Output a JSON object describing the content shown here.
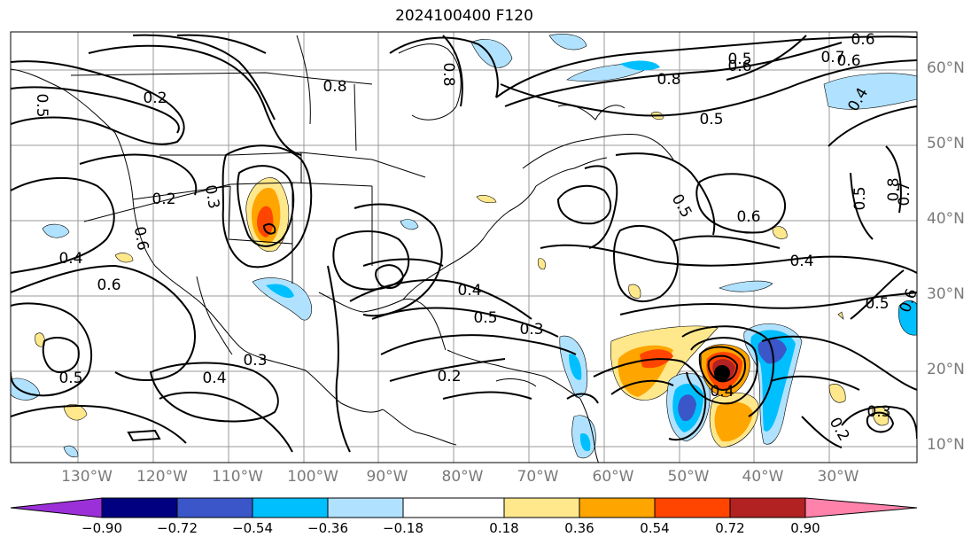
{
  "title": "2024100400 F120",
  "lat_labels": [
    "60°N",
    "50°N",
    "40°N",
    "30°N",
    "20°N",
    "10°N"
  ],
  "lon_labels": [
    "130°W",
    "120°W",
    "110°W",
    "100°W",
    "90°W",
    "80°W",
    "70°W",
    "60°W",
    "50°W",
    "40°W",
    "30°W"
  ],
  "colorbar": {
    "labels": [
      "−0.90",
      "−0.72",
      "−0.54",
      "−0.36",
      "−0.18",
      "0.18",
      "0.36",
      "0.54",
      "0.72",
      "0.90"
    ],
    "colors": [
      "#9b30d9",
      "#000080",
      "#3a56c8",
      "#00bfff",
      "#b0e2ff",
      "#ffffff",
      "#ffe88c",
      "#ffa500",
      "#ff4500",
      "#b22222",
      "#ff82ab"
    ]
  },
  "contour_labels": [
    "0.2",
    "0.2",
    "0.3",
    "0.4",
    "0.6",
    "0.5",
    "0.4",
    "0.3",
    "0.8",
    "0.8",
    "0.8",
    "0.5",
    "0.5",
    "0.6",
    "0.5",
    "0.6",
    "0.4",
    "0.5",
    "0.4",
    "0.5",
    "0.3",
    "0.2",
    "0.4",
    "0.5",
    "0.6",
    "0.7",
    "0.8",
    "0.6",
    "0.7",
    "0.4",
    "0.6",
    "0.5",
    "0.3",
    "0.2",
    "0.6"
  ],
  "storm_marker": "storm-center",
  "colors": {
    "contour": "#000000",
    "grid": "#9a9a9a",
    "frame": "#000000"
  }
}
